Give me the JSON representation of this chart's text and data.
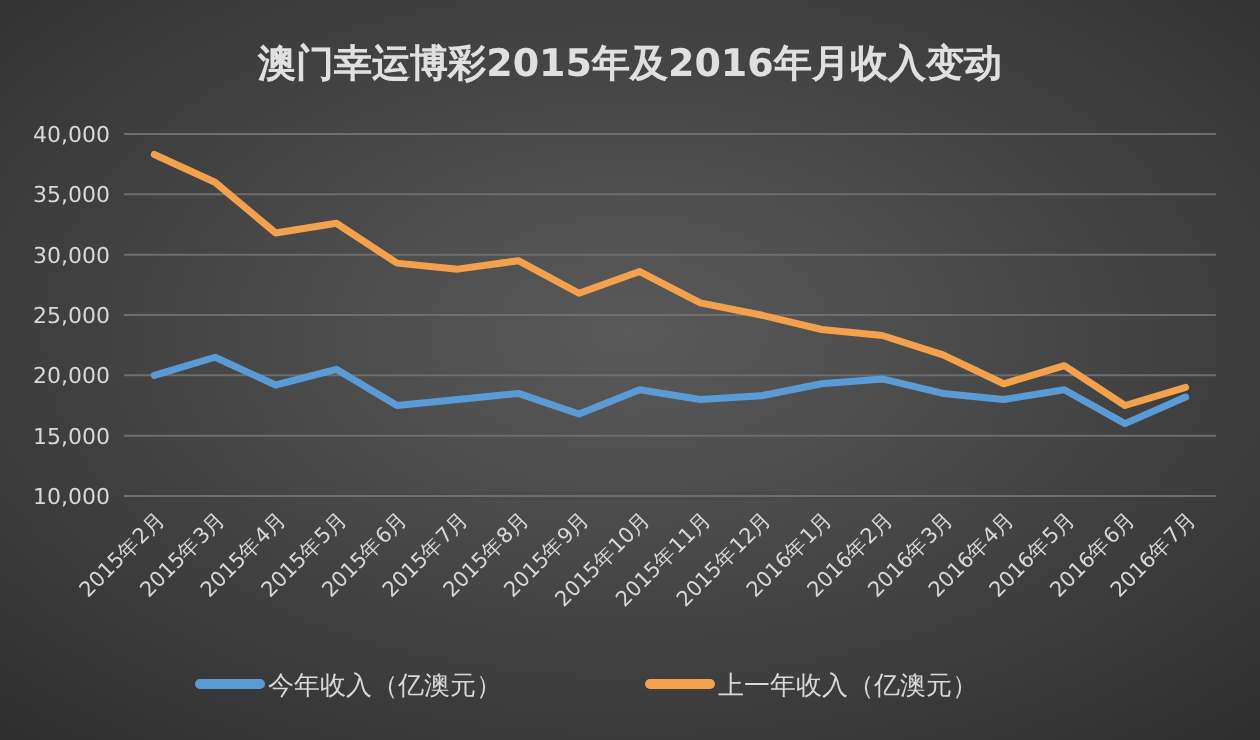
{
  "chart_data": {
    "type": "line",
    "title": "澳门幸运博彩2015年及2016年月收入变动",
    "categories": [
      "2015年2月",
      "2015年3月",
      "2015年4月",
      "2015年5月",
      "2015年6月",
      "2015年7月",
      "2015年8月",
      "2015年9月",
      "2015年10月",
      "2015年11月",
      "2015年12月",
      "2016年1月",
      "2016年2月",
      "2016年3月",
      "2016年4月",
      "2016年5月",
      "2016年6月",
      "2016年7月"
    ],
    "series": [
      {
        "name": "今年收入（亿澳元）",
        "color": "#5b9bd5",
        "values": [
          20000,
          21500,
          19200,
          20500,
          17500,
          18000,
          18500,
          16800,
          18800,
          18000,
          18300,
          19300,
          19700,
          18500,
          18000,
          18800,
          16000,
          18200
        ]
      },
      {
        "name": "上一年收入（亿澳元）",
        "color": "#f4a14e",
        "values": [
          38300,
          36000,
          31800,
          32600,
          29300,
          28800,
          29500,
          26800,
          28600,
          26000,
          25000,
          23800,
          23300,
          21700,
          19300,
          20800,
          17500,
          19000
        ]
      }
    ],
    "ylim": [
      10000,
      40000
    ],
    "yticks": [
      {
        "value": 10000,
        "label": "10,000"
      },
      {
        "value": 15000,
        "label": "15,000"
      },
      {
        "value": 20000,
        "label": "20,000"
      },
      {
        "value": 25000,
        "label": "25,000"
      },
      {
        "value": 30000,
        "label": "30,000"
      },
      {
        "value": 35000,
        "label": "35,000"
      },
      {
        "value": 40000,
        "label": "40,000"
      }
    ],
    "grid": "y",
    "legend": "bottom",
    "marker": "none",
    "line_style": "solid"
  }
}
